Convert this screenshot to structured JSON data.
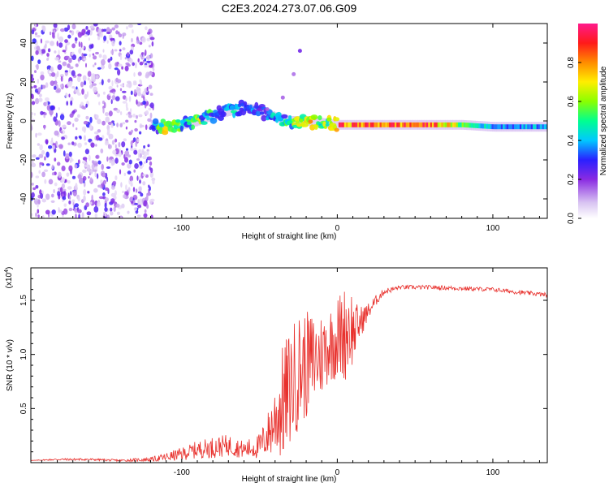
{
  "title": "C2E3.2024.273.07.06.G09",
  "chart_data": [
    {
      "type": "heatmap",
      "title": "C2E3.2024.273.07.06.G09",
      "xlabel": "Height of straight line (km)",
      "ylabel": "Frequency (Hz)",
      "xlim": [
        -197,
        135
      ],
      "ylim": [
        -50,
        50
      ],
      "x_ticks": [
        -100,
        0,
        100
      ],
      "y_ticks": [
        -40,
        -20,
        0,
        20,
        40
      ],
      "colorbar": {
        "label": "Normalized spectral amplitude",
        "range": [
          0,
          1
        ],
        "ticks": [
          0.0,
          0.2,
          0.4,
          0.6,
          0.8
        ]
      },
      "features": [
        {
          "name": "noise_region",
          "x_range": [
            -197,
            -118
          ],
          "y_range": [
            -50,
            50
          ]
        },
        {
          "name": "main_band_points",
          "x": [
            -120,
            -110,
            -100,
            -90,
            -80,
            -70,
            -60,
            -50,
            -40,
            -30,
            -20,
            -10,
            0,
            20,
            60,
            80,
            100,
            135
          ],
          "y": [
            -3,
            -3,
            -2,
            0,
            3,
            5,
            7,
            5,
            2,
            0,
            0,
            -1,
            -2,
            -2,
            -2,
            -2,
            -3,
            -3
          ],
          "amplitude": [
            0.3,
            0.9,
            0.6,
            0.7,
            0.5,
            0.5,
            0.4,
            0.4,
            0.5,
            0.6,
            0.9,
            0.7,
            0.9,
            0.9,
            0.9,
            0.6,
            0.4,
            0.4
          ]
        },
        {
          "name": "rising_streak",
          "x": [
            -45,
            -35,
            -28,
            -24
          ],
          "y": [
            6,
            12,
            24,
            36
          ]
        }
      ]
    },
    {
      "type": "line",
      "xlabel": "Height of straight line (km)",
      "ylabel": "SNR (10 * v/v)",
      "y_multiplier": "(x10",
      "y_multiplier_exp": "4",
      "y_multiplier_close": ")",
      "xlim": [
        -197,
        135
      ],
      "ylim": [
        0,
        1.8
      ],
      "x_ticks": [
        -100,
        0,
        100
      ],
      "y_ticks": [
        0.5,
        1.0,
        1.5
      ],
      "y_tick_labels": [
        "0.5",
        "1.0",
        "1.5"
      ],
      "series": [
        {
          "color": "#e8302c",
          "x": [
            -197,
            -180,
            -160,
            -140,
            -120,
            -110,
            -100,
            -90,
            -80,
            -70,
            -60,
            -50,
            -45,
            -40,
            -35,
            -30,
            -25,
            -20,
            -15,
            -10,
            -5,
            0,
            5,
            8,
            10,
            15,
            20,
            25,
            30,
            40,
            60,
            80,
            100,
            120,
            135
          ],
          "y": [
            0.02,
            0.03,
            0.03,
            0.02,
            0.03,
            0.05,
            0.08,
            0.12,
            0.14,
            0.16,
            0.12,
            0.15,
            0.25,
            0.4,
            0.55,
            0.7,
            0.85,
            0.9,
            0.95,
            1.0,
            1.1,
            1.15,
            1.2,
            1.3,
            1.2,
            1.3,
            1.4,
            1.5,
            1.58,
            1.62,
            1.62,
            1.61,
            1.6,
            1.57,
            1.55
          ],
          "noise": [
            0.0,
            0.01,
            0.01,
            0.01,
            0.02,
            0.04,
            0.06,
            0.08,
            0.1,
            0.1,
            0.08,
            0.12,
            0.2,
            0.35,
            0.55,
            0.55,
            0.55,
            0.5,
            0.45,
            0.4,
            0.35,
            0.4,
            0.45,
            0.5,
            0.3,
            0.15,
            0.08,
            0.05,
            0.03,
            0.02,
            0.02,
            0.02,
            0.02,
            0.02,
            0.02
          ]
        }
      ]
    }
  ]
}
